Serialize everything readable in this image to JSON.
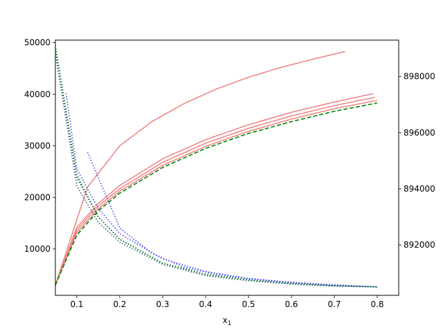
{
  "chart_data": {
    "type": "line",
    "xlabel": "x",
    "xlabel_sub": "1",
    "xlim": [
      0.05,
      0.85
    ],
    "ylim_left": [
      1000,
      50500
    ],
    "ylim_right": [
      890200,
      899300
    ],
    "grid": false,
    "x_ticks": [
      0.1,
      0.2,
      0.3,
      0.4,
      0.5,
      0.6,
      0.7,
      0.8
    ],
    "x_tick_labels": [
      "0.1",
      "0.2",
      "0.3",
      "0.4",
      "0.5",
      "0.6",
      "0.7",
      "0.8"
    ],
    "y_left_ticks": [
      10000,
      20000,
      30000,
      40000,
      50000
    ],
    "y_left_tick_labels": [
      "10000",
      "20000",
      "30000",
      "40000",
      "50000"
    ],
    "y_right_ticks": [
      892000,
      894000,
      896000,
      898000
    ],
    "y_right_tick_labels": [
      "892000",
      "894000",
      "896000",
      "898000"
    ],
    "colors": {
      "red": "#f08080",
      "green": "#008000",
      "blue": "#4040ff",
      "teal": "#2f5f80"
    },
    "series": [
      {
        "axis": "left",
        "color": "red",
        "style": "solid",
        "x": [
          0.05,
          0.125,
          0.2,
          0.275,
          0.35,
          0.425,
          0.5,
          0.575,
          0.65,
          0.725
        ],
        "y": [
          3000,
          22000,
          30000,
          34700,
          38200,
          41000,
          43300,
          45200,
          46800,
          48300
        ]
      },
      {
        "axis": "left",
        "color": "red",
        "style": "solid",
        "x": [
          0.05,
          0.1,
          0.15,
          0.2,
          0.3,
          0.4,
          0.5,
          0.6,
          0.7,
          0.79
        ],
        "y": [
          3000,
          14200,
          18800,
          22300,
          27500,
          31200,
          34100,
          36500,
          38500,
          40100
        ]
      },
      {
        "axis": "left",
        "color": "red",
        "style": "solid",
        "x": [
          0.05,
          0.1,
          0.15,
          0.2,
          0.3,
          0.4,
          0.5,
          0.6,
          0.7,
          0.795
        ],
        "y": [
          3000,
          13700,
          18300,
          21700,
          26800,
          30500,
          33400,
          35800,
          37800,
          39400
        ]
      },
      {
        "axis": "left",
        "color": "red",
        "style": "solid",
        "x": [
          0.05,
          0.1,
          0.15,
          0.2,
          0.3,
          0.4,
          0.5,
          0.6,
          0.7,
          0.8
        ],
        "y": [
          3000,
          13200,
          17800,
          21200,
          26200,
          29900,
          32800,
          35200,
          37200,
          38800
        ]
      },
      {
        "axis": "left",
        "color": "green",
        "style": "dashed",
        "x": [
          0.05,
          0.1,
          0.15,
          0.2,
          0.3,
          0.4,
          0.5,
          0.6,
          0.7,
          0.8
        ],
        "y": [
          3000,
          12700,
          17400,
          20800,
          25800,
          29500,
          32400,
          34700,
          36700,
          38300
        ]
      },
      {
        "axis": "right",
        "color": "blue",
        "style": "dotted",
        "x": [
          0.125,
          0.2,
          0.275,
          0.35,
          0.425,
          0.5,
          0.575,
          0.65,
          0.725,
          0.8
        ],
        "y": [
          895300,
          892600,
          891700,
          891200,
          890950,
          890800,
          890700,
          890620,
          890560,
          890500
        ]
      },
      {
        "axis": "right",
        "color": "blue",
        "style": "dotted",
        "x": [
          0.075,
          0.1,
          0.15,
          0.2,
          0.3,
          0.4,
          0.5,
          0.6,
          0.7,
          0.8
        ],
        "y": [
          897400,
          894700,
          893300,
          892400,
          891500,
          891050,
          890800,
          890650,
          890550,
          890500
        ]
      },
      {
        "axis": "right",
        "color": "teal",
        "style": "dotted",
        "x": [
          0.05,
          0.1,
          0.15,
          0.2,
          0.3,
          0.4,
          0.5,
          0.6,
          0.7,
          0.8
        ],
        "y": [
          899000,
          894400,
          893000,
          892200,
          891350,
          890950,
          890750,
          890620,
          890540,
          890500
        ]
      },
      {
        "axis": "right",
        "color": "teal",
        "style": "dotted",
        "x": [
          0.05,
          0.1,
          0.15,
          0.2,
          0.3,
          0.4,
          0.5,
          0.6,
          0.7,
          0.8
        ],
        "y": [
          898800,
          894100,
          892800,
          892100,
          891300,
          890900,
          890720,
          890600,
          890530,
          890500
        ]
      },
      {
        "axis": "right",
        "color": "green",
        "style": "dotted",
        "x": [
          0.05,
          0.075,
          0.1,
          0.15,
          0.2,
          0.3,
          0.4,
          0.5,
          0.6,
          0.7,
          0.8
        ],
        "y": [
          899100,
          896800,
          894500,
          893000,
          892200,
          891350,
          890950,
          890750,
          890620,
          890540,
          890500
        ]
      }
    ]
  }
}
